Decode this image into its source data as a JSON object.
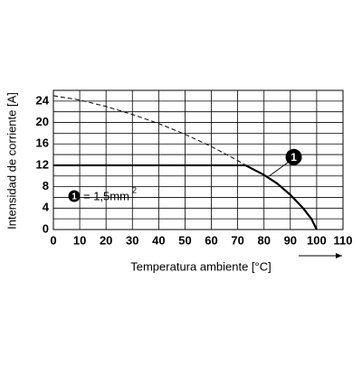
{
  "chart_data": {
    "type": "line",
    "x_label": "Temperatura ambiente [°C]",
    "y_label": "Intensidad de corriente [A]",
    "xlim": [
      0,
      110
    ],
    "xticks": [
      0,
      10,
      20,
      30,
      40,
      50,
      60,
      70,
      80,
      90,
      100,
      110
    ],
    "ylim": [
      0,
      26
    ],
    "yticks": [
      0,
      4,
      8,
      12,
      16,
      20,
      24
    ],
    "y_minor_grid": [
      2,
      6,
      10,
      14,
      18,
      22,
      26
    ],
    "grid": true,
    "series": [
      {
        "color": "#000000",
        "style": "dashed",
        "x": [
          0,
          10,
          20,
          30,
          40,
          50,
          60,
          70,
          73
        ],
        "values": [
          25,
          24.2,
          23,
          21.5,
          19.8,
          17.8,
          15.5,
          12.9,
          12
        ]
      },
      {
        "color": "#000000",
        "style": "solid",
        "x": [
          0,
          73,
          80,
          85,
          90,
          95,
          98,
          100
        ],
        "values": [
          12,
          12,
          10.2,
          8.6,
          6.5,
          3.9,
          2,
          0
        ]
      }
    ],
    "callout": {
      "label": "1",
      "x": 82,
      "y": 10
    },
    "note": {
      "marker": "1",
      "text": "= 1,5mm",
      "sup": "2"
    }
  }
}
